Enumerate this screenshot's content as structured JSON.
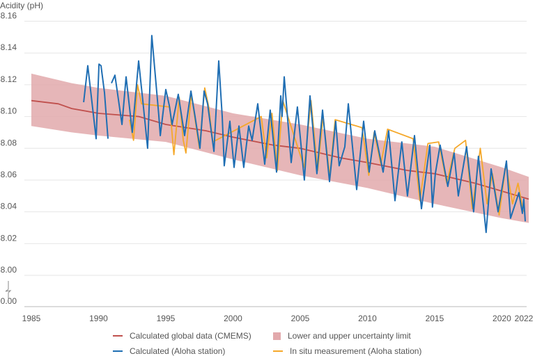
{
  "chart_data": {
    "type": "line",
    "ylabel": "Acidity (pH)",
    "xlabel": "",
    "xlim": [
      1985,
      2022
    ],
    "ylim": [
      8.0,
      8.16
    ],
    "y_axis_break": {
      "below": 8.0,
      "bottom_label": "0.00"
    },
    "x_ticks": [
      1985,
      1990,
      1995,
      2000,
      2005,
      2010,
      2015,
      2020,
      2022
    ],
    "x_tick_labels": [
      "1985",
      "1990",
      "1995",
      "2000",
      "2005",
      "2010",
      "2015",
      "2020",
      "2022"
    ],
    "y_ticks": [
      8.0,
      8.02,
      8.04,
      8.06,
      8.08,
      8.1,
      8.12,
      8.14,
      8.16
    ],
    "y_tick_labels": [
      "8.00",
      "8.02",
      "8.04",
      "8.06",
      "8.08",
      "8.10",
      "8.12",
      "8.14",
      "8.16"
    ],
    "grid": true,
    "legend_position": "bottom",
    "colors": {
      "cmems": "#c0504d",
      "band": "#e2a9ac",
      "aloha": "#1f6eb3",
      "insitu": "#f5a82a",
      "grid": "#e6e6e6",
      "text": "#555555"
    },
    "series": [
      {
        "key": "cmems",
        "name": "Calculated global data (CMEMS)",
        "x": [
          1985,
          1987,
          1988,
          1990,
          1993,
          1995,
          1998,
          2000,
          2003,
          2005,
          2008,
          2010,
          2013,
          2015,
          2018,
          2020,
          2022
        ],
        "y": [
          8.11,
          8.108,
          8.105,
          8.102,
          8.1,
          8.095,
          8.091,
          8.087,
          8.082,
          8.08,
          8.074,
          8.071,
          8.066,
          8.064,
          8.058,
          8.053,
          8.048
        ]
      },
      {
        "key": "band",
        "name": "Lower and upper uncertainty limit",
        "x": [
          1985,
          1988,
          1990,
          1995,
          2000,
          2005,
          2010,
          2015,
          2020,
          2022
        ],
        "lower": [
          8.094,
          8.09,
          8.088,
          8.084,
          8.073,
          8.063,
          8.055,
          8.045,
          8.036,
          8.033
        ],
        "upper": [
          8.127,
          8.121,
          8.118,
          8.113,
          8.102,
          8.095,
          8.086,
          8.081,
          8.068,
          8.062
        ]
      },
      {
        "key": "aloha",
        "name": "Calculated (Aloha station)",
        "x": [
          1988.89,
          1989.2,
          1989.82,
          1990.03,
          1990.18,
          1990.44,
          1990.7,
          null,
          1990.96,
          1991.22,
          1991.74,
          1992.05,
          1992.51,
          1992.98,
          1993.29,
          1993.65,
          1993.96,
          1994.48,
          1994.59,
          1995.0,
          1995.26,
          1995.47,
          1995.93,
          1996.4,
          1996.87,
          1997.18,
          1997.54,
          1997.85,
          1998.11,
          1998.58,
          1998.94,
          1999.2,
          1999.35,
          1999.77,
          2000.08,
          2000.44,
          2000.8,
          2001.17,
          2001.42,
          2001.84,
          2002.36,
          2002.77,
          2003.24,
          2003.55,
          2003.65,
          2003.81,
          2004.33,
          2004.79,
          2005.31,
          2005.73,
          2006.24,
          2006.66,
          2007.18,
          2007.64,
          2007.9,
          2008.32,
          2008.58,
          2009.2,
          2009.72,
          2010.13,
          2010.54,
          2011.17,
          2011.58,
          2012.05,
          2012.56,
          2012.98,
          2013.5,
          2014.02,
          2014.64,
          2014.84,
          2015.05,
          2015.41,
          2015.98,
          2016.45,
          2016.76,
          2017.38,
          2017.9,
          2018.26,
          2018.83,
          2019.2,
          2019.72,
          2020.34,
          2020.65,
          2021.27,
          2021.53,
          2021.63,
          2021.74
        ],
        "y": [
          8.109,
          8.132,
          8.086,
          8.133,
          8.132,
          8.115,
          8.086,
          null,
          8.121,
          8.126,
          8.095,
          8.125,
          8.09,
          8.135,
          8.11,
          8.08,
          8.151,
          8.101,
          8.088,
          8.117,
          8.107,
          8.095,
          8.114,
          8.088,
          8.116,
          8.1,
          8.08,
          8.116,
          8.108,
          8.078,
          8.135,
          8.1,
          8.069,
          8.097,
          8.068,
          8.094,
          8.068,
          8.094,
          8.085,
          8.108,
          8.07,
          8.104,
          8.065,
          8.113,
          8.1,
          8.125,
          8.071,
          8.106,
          8.06,
          8.113,
          8.064,
          8.104,
          8.059,
          8.097,
          8.069,
          8.081,
          8.108,
          8.054,
          8.097,
          8.065,
          8.091,
          8.065,
          8.091,
          8.047,
          8.084,
          8.05,
          8.088,
          8.042,
          8.082,
          8.043,
          8.064,
          8.082,
          8.056,
          8.077,
          8.05,
          8.081,
          8.04,
          8.075,
          8.027,
          8.067,
          8.04,
          8.072,
          8.036,
          8.052,
          8.039,
          8.048,
          8.034
        ]
      },
      {
        "key": "insitu",
        "name": "In situ measurement (Aloha station)",
        "x": [
          1992.3,
          1992.6,
          1992.9,
          1993.2,
          1995.3,
          1995.6,
          1996.0,
          1996.3,
          1996.5,
          1996.9,
          1997.5,
          1997.9,
          1998.2,
          1998.5,
          2002.1,
          2002.5,
          2002.9,
          2003.3,
          2003.7,
          2005.3,
          2005.8,
          2006.3,
          2006.7,
          2007.2,
          2007.6,
          2009.6,
          2010.1,
          2010.5,
          2011.0,
          2011.5,
          2013.4,
          2013.9,
          2014.5,
          2015.3,
          2015.9,
          2016.5,
          2017.3,
          2017.8,
          2018.4,
          2018.9,
          2019.3,
          2019.8,
          2020.3,
          2020.8,
          2021.2,
          2021.6
        ],
        "y": [
          8.098,
          8.085,
          8.12,
          8.108,
          8.106,
          8.076,
          8.112,
          8.085,
          8.077,
          8.114,
          8.08,
          8.118,
          8.106,
          8.084,
          8.1,
          8.074,
          8.102,
          8.066,
          8.11,
          8.068,
          8.11,
          8.066,
          8.1,
          8.062,
          8.098,
          8.093,
          8.063,
          8.09,
          8.07,
          8.092,
          8.086,
          8.047,
          8.083,
          8.084,
          8.058,
          8.08,
          8.085,
          8.042,
          8.08,
          8.045,
          8.064,
          8.038,
          8.07,
          8.045,
          8.058,
          8.04
        ]
      }
    ]
  }
}
